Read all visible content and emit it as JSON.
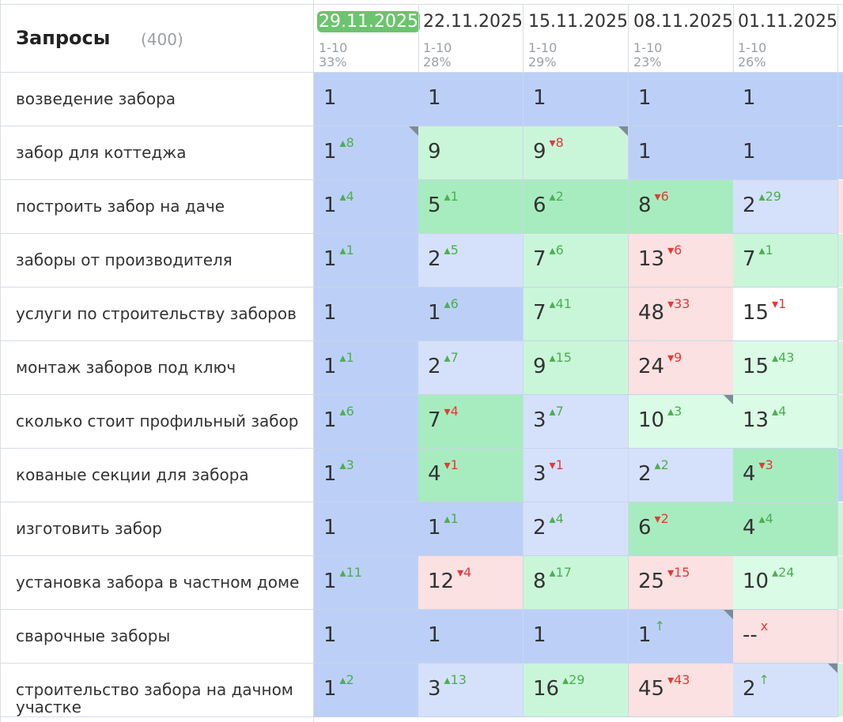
{
  "header": {
    "title": "Запросы",
    "count": "(400)"
  },
  "dates": [
    {
      "label": "29.11.2025",
      "range": "1-10",
      "percent": "33%",
      "active": true
    },
    {
      "label": "22.11.2025",
      "range": "1-10",
      "percent": "28%",
      "active": false
    },
    {
      "label": "15.11.2025",
      "range": "1-10",
      "percent": "29%",
      "active": false
    },
    {
      "label": "08.11.2025",
      "range": "1-10",
      "percent": "23%",
      "active": false
    },
    {
      "label": "01.11.2025",
      "range": "1-10",
      "percent": "26%",
      "active": false
    }
  ],
  "rows": [
    {
      "query": "возведение забора",
      "cells": [
        {
          "value": "1",
          "change": "",
          "dir": "",
          "color": "blue"
        },
        {
          "value": "1",
          "change": "",
          "dir": "",
          "color": "blue"
        },
        {
          "value": "1",
          "change": "",
          "dir": "",
          "color": "blue"
        },
        {
          "value": "1",
          "change": "",
          "dir": "",
          "color": "blue"
        },
        {
          "value": "1",
          "change": "",
          "dir": "",
          "color": "blue"
        }
      ]
    },
    {
      "query": "забор для коттеджа",
      "cells": [
        {
          "value": "1",
          "change": "▴8",
          "dir": "up",
          "color": "blue",
          "corner": true
        },
        {
          "value": "9",
          "change": "",
          "dir": "",
          "color": "lgreen"
        },
        {
          "value": "9",
          "change": "▾8",
          "dir": "down",
          "color": "lgreen",
          "corner": true
        },
        {
          "value": "1",
          "change": "",
          "dir": "",
          "color": "blue"
        },
        {
          "value": "1",
          "change": "",
          "dir": "",
          "color": "blue"
        }
      ]
    },
    {
      "query": "построить забор на даче",
      "cells": [
        {
          "value": "1",
          "change": "▴4",
          "dir": "up",
          "color": "blue"
        },
        {
          "value": "5",
          "change": "▴1",
          "dir": "up",
          "color": "green"
        },
        {
          "value": "6",
          "change": "▴2",
          "dir": "up",
          "color": "green"
        },
        {
          "value": "8",
          "change": "▾6",
          "dir": "down",
          "color": "green"
        },
        {
          "value": "2",
          "change": "▴29",
          "dir": "up",
          "color": "lblue"
        }
      ]
    },
    {
      "query": "заборы от производителя",
      "cells": [
        {
          "value": "1",
          "change": "▴1",
          "dir": "up",
          "color": "blue"
        },
        {
          "value": "2",
          "change": "▴5",
          "dir": "up",
          "color": "lblue"
        },
        {
          "value": "7",
          "change": "▴6",
          "dir": "up",
          "color": "lgreen"
        },
        {
          "value": "13",
          "change": "▾6",
          "dir": "down",
          "color": "pink"
        },
        {
          "value": "7",
          "change": "▴1",
          "dir": "up",
          "color": "lgreen"
        }
      ]
    },
    {
      "query": "услуги по строительству заборов",
      "cells": [
        {
          "value": "1",
          "change": "",
          "dir": "",
          "color": "blue"
        },
        {
          "value": "1",
          "change": "▴6",
          "dir": "up",
          "color": "blue"
        },
        {
          "value": "7",
          "change": "▴41",
          "dir": "up",
          "color": "lgreen"
        },
        {
          "value": "48",
          "change": "▾33",
          "dir": "down",
          "color": "pink"
        },
        {
          "value": "15",
          "change": "▾1",
          "dir": "down",
          "color": "white"
        }
      ]
    },
    {
      "query": "монтаж заборов под ключ",
      "cells": [
        {
          "value": "1",
          "change": "▴1",
          "dir": "up",
          "color": "blue"
        },
        {
          "value": "2",
          "change": "▴7",
          "dir": "up",
          "color": "lblue"
        },
        {
          "value": "9",
          "change": "▴15",
          "dir": "up",
          "color": "lgreen"
        },
        {
          "value": "24",
          "change": "▾9",
          "dir": "down",
          "color": "pink"
        },
        {
          "value": "15",
          "change": "▴43",
          "dir": "up",
          "color": "vlgreen"
        }
      ]
    },
    {
      "query": "сколько стоит профильный забор",
      "cells": [
        {
          "value": "1",
          "change": "▴6",
          "dir": "up",
          "color": "blue"
        },
        {
          "value": "7",
          "change": "▾4",
          "dir": "down",
          "color": "green"
        },
        {
          "value": "3",
          "change": "▴7",
          "dir": "up",
          "color": "lblue"
        },
        {
          "value": "10",
          "change": "▴3",
          "dir": "up",
          "color": "vlgreen",
          "corner": true
        },
        {
          "value": "13",
          "change": "▴4",
          "dir": "up",
          "color": "vlgreen"
        }
      ]
    },
    {
      "query": "кованые секции для забора",
      "cells": [
        {
          "value": "1",
          "change": "▴3",
          "dir": "up",
          "color": "blue"
        },
        {
          "value": "4",
          "change": "▾1",
          "dir": "down",
          "color": "green"
        },
        {
          "value": "3",
          "change": "▾1",
          "dir": "down",
          "color": "lblue"
        },
        {
          "value": "2",
          "change": "▴2",
          "dir": "up",
          "color": "lblue"
        },
        {
          "value": "4",
          "change": "▾3",
          "dir": "down",
          "color": "green"
        }
      ]
    },
    {
      "query": "изготовить забор",
      "cells": [
        {
          "value": "1",
          "change": "",
          "dir": "",
          "color": "blue"
        },
        {
          "value": "1",
          "change": "▴1",
          "dir": "up",
          "color": "blue"
        },
        {
          "value": "2",
          "change": "▴4",
          "dir": "up",
          "color": "lblue"
        },
        {
          "value": "6",
          "change": "▾2",
          "dir": "down",
          "color": "green"
        },
        {
          "value": "4",
          "change": "▴4",
          "dir": "up",
          "color": "green"
        }
      ]
    },
    {
      "query": "установка забора в частном доме",
      "cells": [
        {
          "value": "1",
          "change": "▴11",
          "dir": "up",
          "color": "blue"
        },
        {
          "value": "12",
          "change": "▾4",
          "dir": "down",
          "color": "pink"
        },
        {
          "value": "8",
          "change": "▴17",
          "dir": "up",
          "color": "lgreen"
        },
        {
          "value": "25",
          "change": "▾15",
          "dir": "down",
          "color": "pink"
        },
        {
          "value": "10",
          "change": "▴24",
          "dir": "up",
          "color": "vlgreen"
        }
      ]
    },
    {
      "query": "сварочные заборы",
      "cells": [
        {
          "value": "1",
          "change": "",
          "dir": "",
          "color": "blue"
        },
        {
          "value": "1",
          "change": "",
          "dir": "",
          "color": "blue"
        },
        {
          "value": "1",
          "change": "",
          "dir": "",
          "color": "blue"
        },
        {
          "value": "1",
          "change": "↑",
          "dir": "up",
          "color": "blue",
          "corner": true
        },
        {
          "value": "--",
          "change": "x",
          "dir": "down",
          "color": "pink"
        }
      ]
    },
    {
      "query": "строительство забора на дачном участке",
      "cells": [
        {
          "value": "1",
          "change": "▴2",
          "dir": "up",
          "color": "blue"
        },
        {
          "value": "3",
          "change": "▴13",
          "dir": "up",
          "color": "lblue"
        },
        {
          "value": "16",
          "change": "▴29",
          "dir": "up",
          "color": "lgreen"
        },
        {
          "value": "45",
          "change": "▾43",
          "dir": "down",
          "color": "pink"
        },
        {
          "value": "2",
          "change": "↑",
          "dir": "up",
          "color": "lblue",
          "corner": true
        }
      ]
    }
  ]
}
